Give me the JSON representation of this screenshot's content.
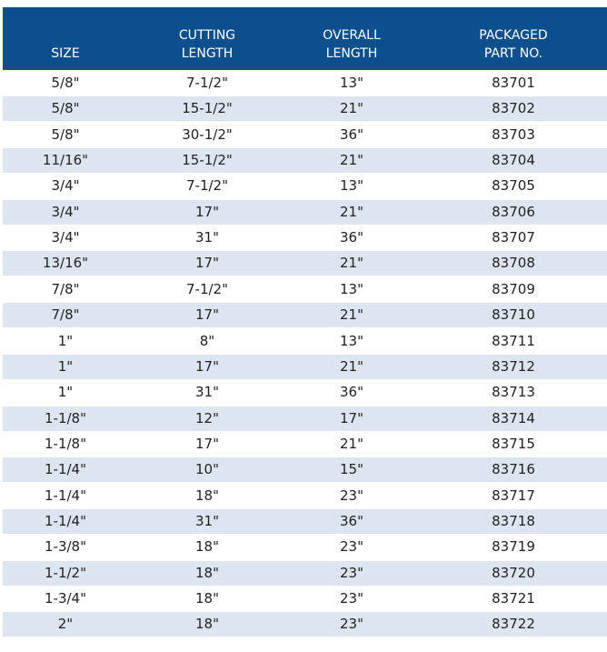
{
  "table": {
    "header": [
      [
        "SIZE"
      ],
      [
        "CUTTING",
        "LENGTH"
      ],
      [
        "OVERALL",
        "LENGTH"
      ],
      [
        "PACKAGED",
        "PART NO."
      ]
    ],
    "rows": [
      [
        "5/8\"",
        "7-1/2\"",
        "13\"",
        "83701"
      ],
      [
        "5/8\"",
        "15-1/2\"",
        "21\"",
        "83702"
      ],
      [
        "5/8\"",
        "30-1/2\"",
        "36\"",
        "83703"
      ],
      [
        "11/16\"",
        "15-1/2\"",
        "21\"",
        "83704"
      ],
      [
        "3/4\"",
        "7-1/2\"",
        "13\"",
        "83705"
      ],
      [
        "3/4\"",
        "17\"",
        "21\"",
        "83706"
      ],
      [
        "3/4\"",
        "31\"",
        "36\"",
        "83707"
      ],
      [
        "13/16\"",
        "17\"",
        "21\"",
        "83708"
      ],
      [
        "7/8\"",
        "7-1/2\"",
        "13\"",
        "83709"
      ],
      [
        "7/8\"",
        "17\"",
        "21\"",
        "83710"
      ],
      [
        "1\"",
        "8\"",
        "13\"",
        "83711"
      ],
      [
        "1\"",
        "17\"",
        "21\"",
        "83712"
      ],
      [
        "1\"",
        "31\"",
        "36\"",
        "83713"
      ],
      [
        "1-1/8\"",
        "12\"",
        "17\"",
        "83714"
      ],
      [
        "1-1/8\"",
        "17\"",
        "21\"",
        "83715"
      ],
      [
        "1-1/4\"",
        "10\"",
        "15\"",
        "83716"
      ],
      [
        "1-1/4\"",
        "18\"",
        "23\"",
        "83717"
      ],
      [
        "1-1/4\"",
        "31\"",
        "36\"",
        "83718"
      ],
      [
        "1-3/8\"",
        "18\"",
        "23\"",
        "83719"
      ],
      [
        "1-1/2\"",
        "18\"",
        "23\"",
        "83720"
      ],
      [
        "1-3/4\"",
        "18\"",
        "23\"",
        "83721"
      ],
      [
        "2\"",
        "18\"",
        "23\"",
        "83722"
      ]
    ]
  }
}
